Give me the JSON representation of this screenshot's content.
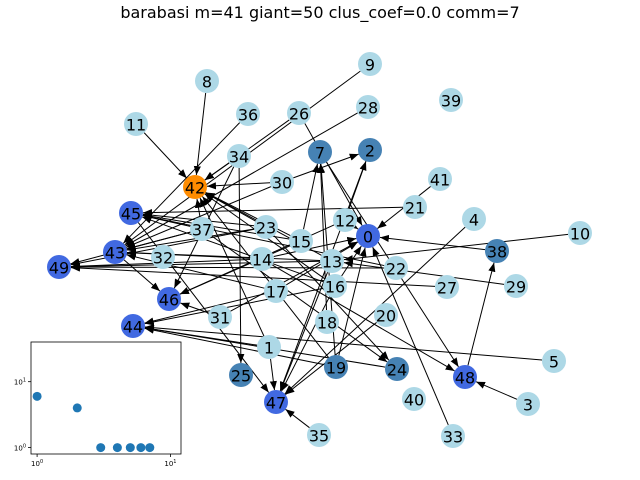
{
  "title": "barabasi m=41 giant=50 clus_coef=0.0 comm=7",
  "colors": {
    "light": "#add8e6",
    "steel": "#4682b4",
    "royal": "#4169e1",
    "orange": "#ff8c00",
    "scatter": "#1f77b4"
  },
  "graph": {
    "nodes": [
      {
        "id": "0",
        "color": "royal"
      },
      {
        "id": "1",
        "color": "light"
      },
      {
        "id": "2",
        "color": "steel"
      },
      {
        "id": "3",
        "color": "light"
      },
      {
        "id": "4",
        "color": "light"
      },
      {
        "id": "5",
        "color": "light"
      },
      {
        "id": "7",
        "color": "steel"
      },
      {
        "id": "8",
        "color": "light"
      },
      {
        "id": "9",
        "color": "light"
      },
      {
        "id": "10",
        "color": "light"
      },
      {
        "id": "11",
        "color": "light"
      },
      {
        "id": "12",
        "color": "light"
      },
      {
        "id": "13",
        "color": "light"
      },
      {
        "id": "14",
        "color": "light"
      },
      {
        "id": "15",
        "color": "light"
      },
      {
        "id": "16",
        "color": "light"
      },
      {
        "id": "17",
        "color": "light"
      },
      {
        "id": "18",
        "color": "light"
      },
      {
        "id": "19",
        "color": "steel"
      },
      {
        "id": "20",
        "color": "light"
      },
      {
        "id": "21",
        "color": "light"
      },
      {
        "id": "22",
        "color": "light"
      },
      {
        "id": "23",
        "color": "light"
      },
      {
        "id": "24",
        "color": "steel"
      },
      {
        "id": "25",
        "color": "steel"
      },
      {
        "id": "26",
        "color": "light"
      },
      {
        "id": "27",
        "color": "light"
      },
      {
        "id": "28",
        "color": "light"
      },
      {
        "id": "29",
        "color": "light"
      },
      {
        "id": "30",
        "color": "light"
      },
      {
        "id": "31",
        "color": "light"
      },
      {
        "id": "32",
        "color": "light"
      },
      {
        "id": "33",
        "color": "light"
      },
      {
        "id": "34",
        "color": "light"
      },
      {
        "id": "35",
        "color": "light"
      },
      {
        "id": "36",
        "color": "light"
      },
      {
        "id": "37",
        "color": "light"
      },
      {
        "id": "38",
        "color": "steel"
      },
      {
        "id": "39",
        "color": "light"
      },
      {
        "id": "40",
        "color": "light"
      },
      {
        "id": "41",
        "color": "light"
      },
      {
        "id": "42",
        "color": "orange"
      },
      {
        "id": "43",
        "color": "royal"
      },
      {
        "id": "44",
        "color": "royal"
      },
      {
        "id": "45",
        "color": "royal"
      },
      {
        "id": "46",
        "color": "royal"
      },
      {
        "id": "47",
        "color": "royal"
      },
      {
        "id": "48",
        "color": "royal"
      },
      {
        "id": "49",
        "color": "royal"
      }
    ],
    "edges": [
      [
        "8",
        "42"
      ],
      [
        "11",
        "42"
      ],
      [
        "34",
        "42"
      ],
      [
        "26",
        "42"
      ],
      [
        "30",
        "42"
      ],
      [
        "37",
        "42"
      ],
      [
        "23",
        "42"
      ],
      [
        "16",
        "42"
      ],
      [
        "15",
        "42"
      ],
      [
        "13",
        "42"
      ],
      [
        "1",
        "42"
      ],
      [
        "19",
        "42"
      ],
      [
        "9",
        "43"
      ],
      [
        "36",
        "43"
      ],
      [
        "28",
        "43"
      ],
      [
        "30",
        "43"
      ],
      [
        "23",
        "43"
      ],
      [
        "14",
        "43"
      ],
      [
        "37",
        "43"
      ],
      [
        "13",
        "43"
      ],
      [
        "17",
        "43"
      ],
      [
        "23",
        "49"
      ],
      [
        "13",
        "49"
      ],
      [
        "27",
        "49"
      ],
      [
        "22",
        "49"
      ],
      [
        "14",
        "49"
      ],
      [
        "37",
        "49"
      ],
      [
        "21",
        "45"
      ],
      [
        "37",
        "45"
      ],
      [
        "23",
        "45"
      ],
      [
        "22",
        "45"
      ],
      [
        "16",
        "45"
      ],
      [
        "15",
        "45"
      ],
      [
        "1",
        "44"
      ],
      [
        "5",
        "44"
      ],
      [
        "19",
        "44"
      ],
      [
        "17",
        "44"
      ],
      [
        "16",
        "44"
      ],
      [
        "24",
        "44"
      ],
      [
        "34",
        "46"
      ],
      [
        "12",
        "46"
      ],
      [
        "15",
        "46"
      ],
      [
        "43",
        "46"
      ],
      [
        "31",
        "46"
      ],
      [
        "16",
        "47"
      ],
      [
        "2",
        "47"
      ],
      [
        "20",
        "47"
      ],
      [
        "4",
        "47"
      ],
      [
        "35",
        "47"
      ],
      [
        "1",
        "47"
      ],
      [
        "13",
        "47"
      ],
      [
        "45",
        "47"
      ],
      [
        "41",
        "0"
      ],
      [
        "16",
        "0"
      ],
      [
        "12",
        "0"
      ],
      [
        "14",
        "0"
      ],
      [
        "17",
        "0"
      ],
      [
        "33",
        "0"
      ],
      [
        "31",
        "0"
      ],
      [
        "38",
        "0"
      ],
      [
        "30",
        "2"
      ],
      [
        "12",
        "2"
      ],
      [
        "34",
        "25"
      ],
      [
        "15",
        "7"
      ],
      [
        "18",
        "7"
      ],
      [
        "19",
        "7"
      ],
      [
        "26",
        "0"
      ],
      [
        "29",
        "13"
      ],
      [
        "10",
        "13"
      ],
      [
        "48",
        "38"
      ],
      [
        "3",
        "48"
      ],
      [
        "7",
        "48"
      ],
      [
        "14",
        "48"
      ],
      [
        "23",
        "24"
      ],
      [
        "37",
        "24"
      ],
      [
        "19",
        "0"
      ]
    ]
  },
  "chart_data": {
    "type": "scatter",
    "xscale": "log",
    "yscale": "log",
    "xlim": [
      0.9,
      12
    ],
    "ylim": [
      0.8,
      40
    ],
    "x": [
      1,
      2,
      3,
      4,
      5,
      6,
      7
    ],
    "y": [
      6,
      4,
      1,
      1,
      1,
      1,
      1
    ],
    "xticks": [
      {
        "value": 1,
        "label_base": "10",
        "label_exp": "0"
      },
      {
        "value": 10,
        "label_base": "10",
        "label_exp": "1"
      }
    ],
    "yticks": [
      {
        "value": 1,
        "label_base": "10",
        "label_exp": "0"
      },
      {
        "value": 10,
        "label_base": "10",
        "label_exp": "1"
      }
    ]
  }
}
